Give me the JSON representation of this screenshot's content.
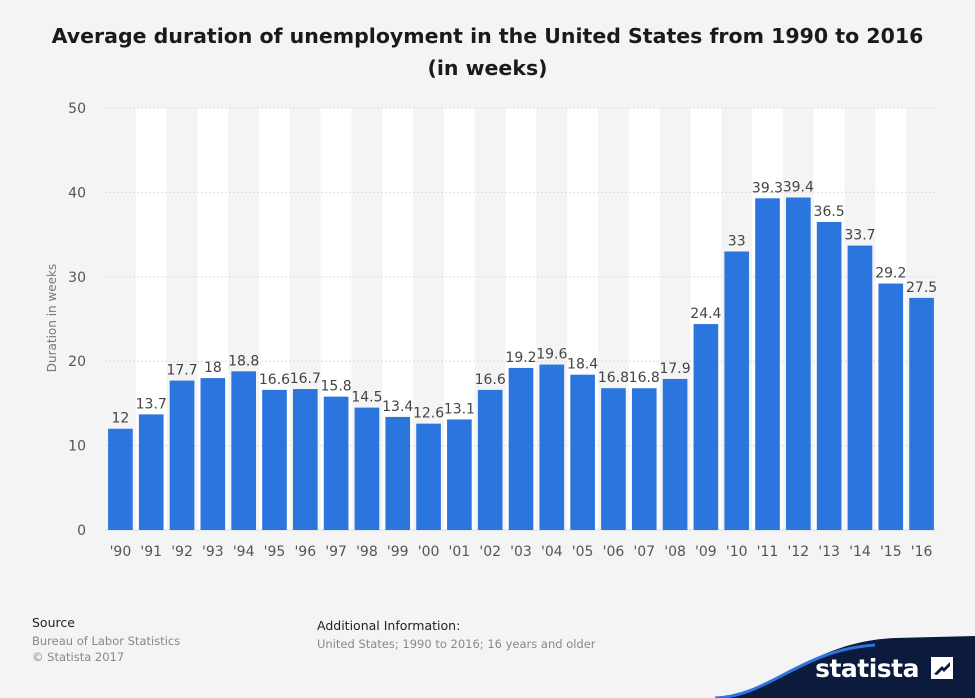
{
  "title": "Average duration of unemployment in the United States from 1990 to 2016 (in weeks)",
  "source": {
    "heading": "Source",
    "lines": [
      "Bureau of Labor Statistics",
      "© Statista 2017"
    ]
  },
  "additional": {
    "heading": "Additional Information:",
    "text": "United States; 1990 to 2016; 16 years and older"
  },
  "brand": {
    "name": "statista",
    "logo_icon": "statista-logo-icon"
  },
  "colors": {
    "bar": "#2b75de",
    "background": "#f4f4f4",
    "band": "#ffffff",
    "gridline": "#dcdcdc",
    "brand_wave": "#0b1a3d"
  },
  "chart_data": {
    "type": "bar",
    "title": "Average duration of unemployment in the United States from 1990 to 2016 (in weeks)",
    "xlabel": "",
    "ylabel": "Duration in weeks",
    "categories": [
      "'90",
      "'91",
      "'92",
      "'93",
      "'94",
      "'95",
      "'96",
      "'97",
      "'98",
      "'99",
      "'00",
      "'01",
      "'02",
      "'03",
      "'04",
      "'05",
      "'06",
      "'07",
      "'08",
      "'09",
      "'10",
      "'11",
      "'12",
      "'13",
      "'14",
      "'15",
      "'16"
    ],
    "values": [
      12,
      13.7,
      17.7,
      18,
      18.8,
      16.6,
      16.7,
      15.8,
      14.5,
      13.4,
      12.6,
      13.1,
      16.6,
      19.2,
      19.6,
      18.4,
      16.8,
      16.8,
      17.9,
      24.4,
      33,
      39.3,
      39.4,
      36.5,
      33.7,
      29.2,
      27.5
    ],
    "value_labels": [
      "12",
      "13.7",
      "17.7",
      "18",
      "18.8",
      "16.6",
      "16.7",
      "15.8",
      "14.5",
      "13.4",
      "12.6",
      "13.1",
      "16.6",
      "19.2",
      "19.6",
      "18.4",
      "16.8",
      "16.8",
      "17.9",
      "24.4",
      "33",
      "39.3",
      "39.4",
      "36.5",
      "33.7",
      "29.2",
      "27.5"
    ],
    "ylim": [
      0,
      50
    ],
    "yticks": [
      "0",
      "10",
      "20",
      "30",
      "40",
      "50"
    ],
    "grid": true,
    "legend": "none"
  }
}
